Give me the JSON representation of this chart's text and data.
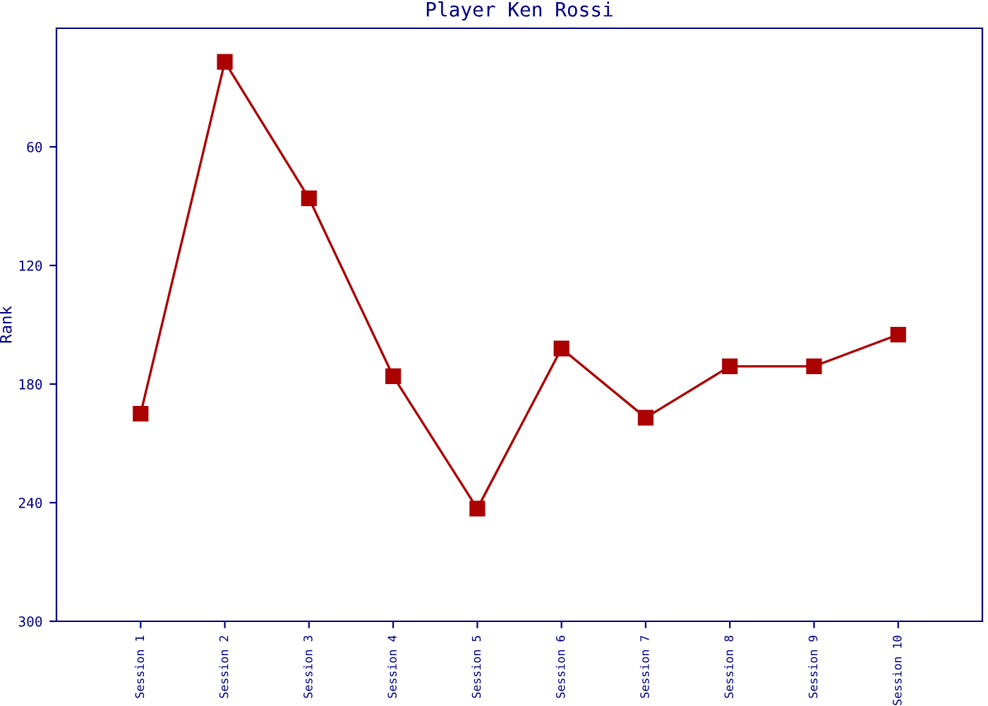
{
  "chart_data": {
    "type": "line",
    "title": "Player Ken Rossi",
    "ylabel": "Rank",
    "categories": [
      "Session 1",
      "Session 2",
      "Session 3",
      "Session 4",
      "Session 5",
      "Session 6",
      "Session 7",
      "Session 8",
      "Session 9",
      "Session 10"
    ],
    "series": [
      {
        "color": "#aa0000",
        "values": [
          195,
          17,
          86,
          176,
          243,
          162,
          197,
          171,
          171,
          155
        ]
      }
    ],
    "ylim": [
      300,
      0
    ],
    "yticks": [
      60,
      120,
      180,
      240,
      300
    ],
    "marker": "square",
    "line_style": "solid",
    "grid": false,
    "legend": false
  }
}
